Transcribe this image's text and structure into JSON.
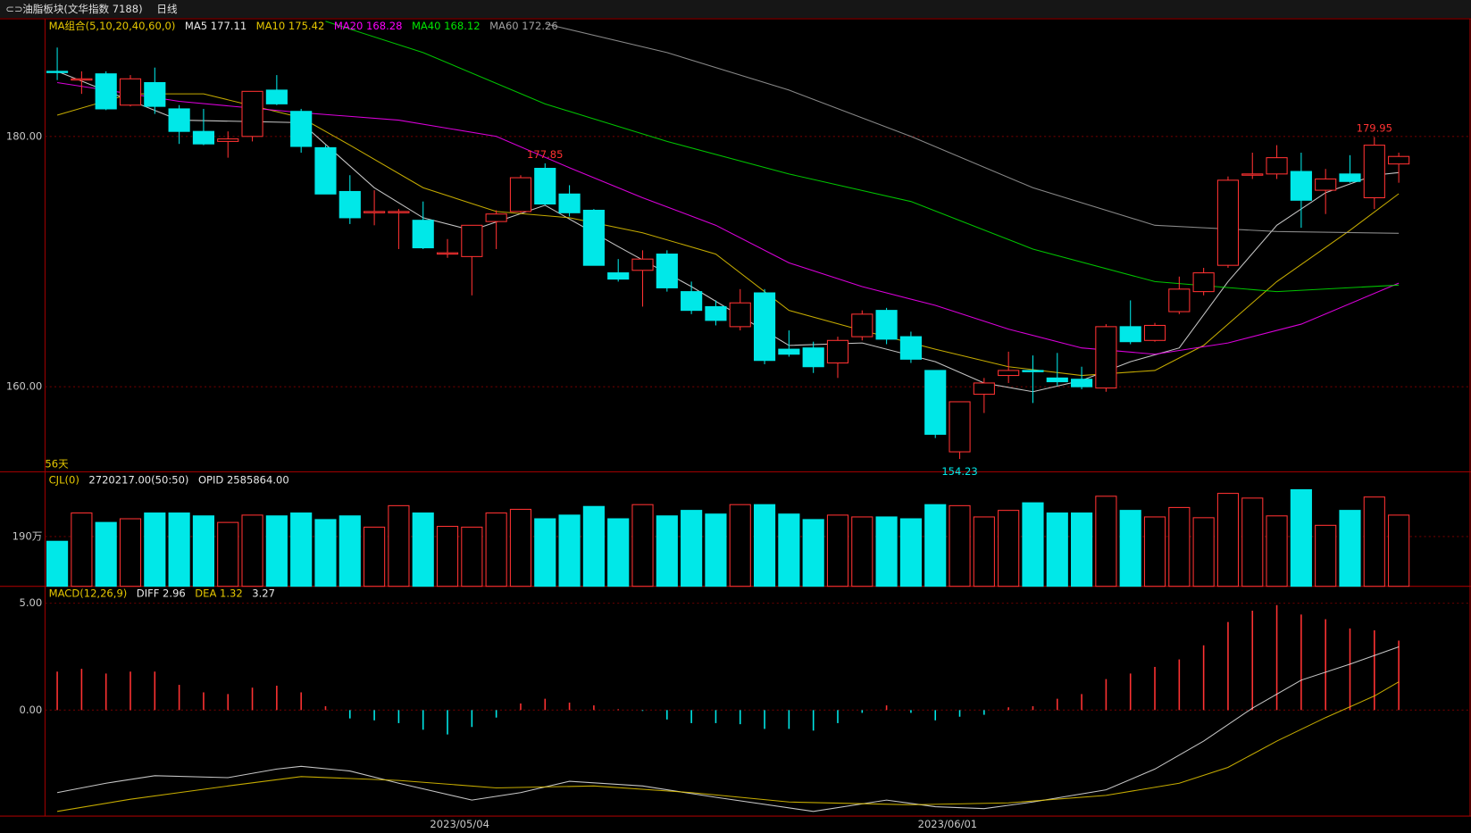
{
  "header": {
    "title": "油脂板块(文华指数 7188)",
    "period": "日线"
  },
  "chart_data": [
    {
      "type": "candlestick",
      "indicator": "MA组合(5,10,20,40,60,0)",
      "count_label": "56天",
      "categories": [
        null,
        null,
        null,
        null,
        null,
        null,
        null,
        null,
        null,
        null,
        null,
        null,
        null,
        null,
        null,
        null,
        null,
        "2023/05/04",
        null,
        null,
        null,
        null,
        null,
        null,
        null,
        null,
        null,
        null,
        null,
        null,
        null,
        null,
        null,
        null,
        null,
        null,
        null,
        "2023/06/01",
        null,
        null,
        null,
        null,
        null,
        null,
        null,
        null,
        null,
        null,
        null,
        null,
        null,
        null,
        null,
        null,
        null,
        null
      ],
      "open": [
        185.2,
        184.5,
        185.0,
        182.5,
        184.3,
        182.2,
        180.4,
        179.6,
        180.0,
        183.7,
        182.0,
        179.1,
        175.6,
        173.9,
        173.9,
        173.3,
        170.6,
        170.4,
        173.2,
        174.0,
        177.45,
        175.4,
        174.1,
        169.1,
        169.3,
        170.6,
        167.6,
        166.4,
        164.8,
        167.5,
        163.0,
        163.1,
        161.9,
        164.0,
        166.1,
        164.0,
        161.3,
        154.8,
        159.4,
        160.9,
        161.3,
        160.7,
        160.6,
        159.9,
        164.8,
        163.7,
        166.0,
        167.6,
        169.7,
        176.9,
        177.0,
        177.2,
        175.7,
        177.0,
        175.1,
        177.8
      ],
      "high": [
        187.1,
        185.2,
        185.2,
        184.9,
        185.5,
        182.5,
        182.2,
        180.4,
        183.6,
        184.9,
        182.2,
        179.3,
        176.9,
        175.7,
        174.2,
        174.8,
        171.8,
        172.9,
        174.1,
        176.9,
        177.85,
        176.1,
        174.2,
        170.2,
        170.9,
        170.9,
        168.4,
        166.9,
        167.8,
        167.8,
        164.5,
        163.6,
        164.0,
        166.1,
        166.3,
        164.4,
        161.3,
        158.8,
        160.7,
        162.8,
        162.5,
        162.7,
        161.6,
        165.0,
        166.9,
        165.1,
        168.8,
        169.5,
        176.8,
        178.7,
        179.3,
        178.7,
        177.4,
        178.5,
        179.95,
        178.7
      ],
      "low": [
        184.5,
        183.4,
        182.1,
        182.4,
        181.8,
        179.4,
        179.3,
        178.3,
        179.6,
        182.5,
        178.7,
        175.4,
        173.0,
        172.9,
        171.0,
        171.0,
        170.3,
        167.3,
        171.0,
        173.9,
        174.5,
        173.6,
        169.7,
        168.4,
        166.4,
        167.6,
        165.8,
        164.9,
        164.5,
        161.8,
        162.4,
        161.1,
        160.7,
        163.7,
        163.4,
        161.9,
        155.9,
        154.23,
        157.9,
        160.3,
        158.7,
        160.1,
        159.8,
        159.6,
        163.4,
        163.6,
        165.8,
        167.3,
        169.5,
        176.6,
        176.6,
        172.7,
        173.8,
        176.3,
        174.2,
        176.3
      ],
      "close": [
        185.1,
        184.6,
        182.2,
        184.6,
        182.4,
        180.4,
        179.4,
        179.8,
        183.6,
        182.6,
        179.2,
        175.4,
        173.5,
        174.0,
        174.0,
        171.1,
        170.7,
        172.9,
        173.8,
        176.7,
        174.6,
        173.9,
        169.7,
        168.6,
        170.2,
        167.9,
        166.1,
        165.3,
        166.7,
        162.1,
        162.6,
        161.6,
        163.7,
        165.8,
        163.8,
        162.2,
        156.2,
        158.8,
        160.3,
        161.3,
        161.2,
        160.4,
        160.0,
        164.8,
        163.6,
        164.9,
        167.8,
        169.1,
        176.5,
        177.0,
        178.3,
        174.9,
        176.6,
        176.4,
        179.3,
        178.4
      ],
      "up_color": "#ff3232",
      "down_color": "#00e8e8",
      "series": [
        {
          "name": "MA5 177.11",
          "color": "#e8e8e8",
          "x": [
            0,
            5,
            10,
            13,
            15,
            17,
            20,
            23,
            26,
            30,
            33,
            36,
            38,
            40,
            42,
            44,
            46,
            48,
            50,
            52,
            54,
            55
          ],
          "values": [
            185.2,
            181.3,
            181.1,
            175.9,
            173.5,
            172.5,
            174.5,
            171.2,
            168.0,
            163.3,
            163.5,
            162.0,
            160.3,
            159.6,
            160.5,
            162.0,
            163.1,
            168.4,
            172.9,
            175.5,
            176.9,
            177.11
          ]
        },
        {
          "name": "MA10 175.42",
          "color": "#e6c800",
          "x": [
            0,
            3,
            6,
            10,
            12,
            15,
            18,
            21,
            24,
            27,
            30,
            33,
            36,
            39,
            42,
            45,
            47,
            50,
            53,
            55
          ],
          "values": [
            181.7,
            183.4,
            183.4,
            181.5,
            179.3,
            175.9,
            174.0,
            173.5,
            172.3,
            170.6,
            166.1,
            164.5,
            163.0,
            161.6,
            160.9,
            161.3,
            163.3,
            168.4,
            172.5,
            175.42
          ]
        },
        {
          "name": "MA20 168.28",
          "color": "#ff00ff",
          "x": [
            0,
            5,
            10,
            14,
            18,
            21,
            24,
            27,
            30,
            33,
            36,
            39,
            42,
            45,
            48,
            51,
            55
          ],
          "values": [
            184.3,
            182.8,
            181.9,
            181.3,
            180.0,
            177.5,
            175.1,
            172.9,
            169.9,
            168.0,
            166.5,
            164.6,
            163.1,
            162.6,
            163.5,
            165.0,
            168.28
          ]
        },
        {
          "name": "MA40 168.12",
          "color": "#00e600",
          "x": [
            11,
            15,
            20,
            25,
            30,
            35,
            40,
            45,
            50,
            55
          ],
          "values": [
            189.2,
            186.7,
            182.6,
            179.6,
            177.0,
            174.8,
            171.0,
            168.4,
            167.6,
            168.12
          ]
        },
        {
          "name": "MA60 172.26",
          "color": "#a0a0a0",
          "x": [
            20,
            25,
            30,
            35,
            40,
            45,
            50,
            55
          ],
          "values": [
            189.0,
            186.7,
            183.7,
            180.0,
            175.9,
            172.9,
            172.4,
            172.26
          ]
        }
      ],
      "ylim": [
        153.2,
        189.4
      ],
      "yticks": [
        {
          "value": 160,
          "label": "160.00"
        },
        {
          "value": 180,
          "label": "180.00"
        }
      ]
    },
    {
      "type": "volume",
      "title": "CJL(0)",
      "readouts": [
        "2720217.00(50:50)",
        "OPID 2585864.00"
      ],
      "values": [
        172,
        280,
        244,
        258,
        280,
        280,
        269,
        244,
        272,
        269,
        280,
        255,
        269,
        226,
        308,
        280,
        229,
        226,
        280,
        294,
        258,
        272,
        305,
        258,
        312,
        269,
        290,
        276,
        312,
        312,
        276,
        255,
        272,
        265,
        265,
        258,
        312,
        308,
        265,
        290,
        319,
        280,
        280,
        344,
        290,
        265,
        301,
        262,
        355,
        337,
        269,
        369,
        233,
        290,
        341,
        272
      ],
      "ylim": [
        0,
        430
      ],
      "yticks": [
        {
          "value": 190,
          "label": "190万"
        }
      ]
    },
    {
      "type": "macd",
      "title": "MACD(12,26,9)",
      "histogram": {
        "name": "3.27",
        "values": [
          1.8,
          1.93,
          1.71,
          1.8,
          1.8,
          1.18,
          0.83,
          0.75,
          1.05,
          1.14,
          0.83,
          0.18,
          -0.39,
          -0.48,
          -0.61,
          -0.92,
          -1.14,
          -0.79,
          -0.35,
          0.31,
          0.53,
          0.35,
          0.22,
          0.04,
          -0.04,
          -0.44,
          -0.61,
          -0.61,
          -0.66,
          -0.88,
          -0.88,
          -0.96,
          -0.61,
          -0.13,
          0.22,
          -0.13,
          -0.48,
          -0.31,
          -0.22,
          0.13,
          0.18,
          0.53,
          0.75,
          1.45,
          1.71,
          2.02,
          2.37,
          3.03,
          4.12,
          4.65,
          4.91,
          4.47,
          4.25,
          3.82,
          3.73,
          3.25
        ]
      },
      "series": [
        {
          "name": "DIFF 2.96",
          "color": "#e8e8e8",
          "x": [
            0,
            2,
            4,
            7,
            9,
            10,
            12,
            14,
            17,
            19,
            21,
            24,
            27,
            31,
            34,
            36,
            38,
            40,
            43,
            45,
            47,
            49,
            51,
            53,
            55
          ],
          "values": [
            -3.86,
            -3.42,
            -3.07,
            -3.16,
            -2.76,
            -2.63,
            -2.85,
            -3.42,
            -4.21,
            -3.86,
            -3.33,
            -3.55,
            -4.08,
            -4.74,
            -4.21,
            -4.52,
            -4.61,
            -4.3,
            -3.73,
            -2.76,
            -1.45,
            0.09,
            1.4,
            2.15,
            2.96
          ]
        },
        {
          "name": "DEA 1.32",
          "color": "#e6c800",
          "x": [
            0,
            3,
            7,
            10,
            14,
            18,
            22,
            26,
            30,
            35,
            39,
            43,
            46,
            48,
            50,
            52,
            54,
            55
          ],
          "values": [
            -4.74,
            -4.17,
            -3.55,
            -3.11,
            -3.29,
            -3.64,
            -3.55,
            -3.86,
            -4.3,
            -4.43,
            -4.34,
            -3.99,
            -3.42,
            -2.68,
            -1.45,
            -0.35,
            0.66,
            1.32
          ]
        }
      ],
      "up_color": "#ff3232",
      "down_color": "#00e8e8",
      "ylim": [
        -4.96,
        5.44
      ],
      "yticks": [
        {
          "value": 0,
          "label": "0.00"
        },
        {
          "value": 5,
          "label": "5.00"
        }
      ]
    }
  ]
}
